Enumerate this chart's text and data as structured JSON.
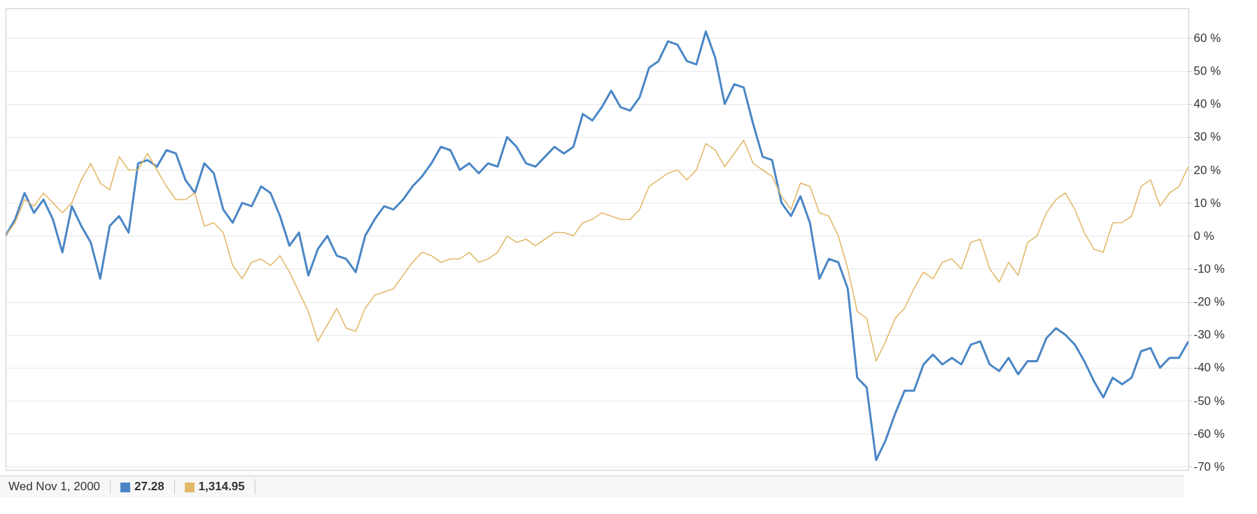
{
  "chart_data": {
    "type": "line",
    "categories": [
      null,
      null,
      null,
      null,
      null,
      null,
      null,
      null,
      null,
      null,
      null,
      null,
      null,
      null,
      null,
      null,
      null,
      null,
      null,
      null,
      null,
      null,
      null,
      null,
      null,
      null,
      null,
      null,
      null,
      null,
      null,
      null,
      null,
      null,
      null,
      null,
      null,
      null,
      null,
      null,
      null,
      null,
      null,
      null,
      null,
      null,
      null,
      null,
      null,
      null,
      null,
      null,
      null,
      null,
      null,
      null,
      null,
      null,
      null,
      null,
      null,
      null,
      null,
      null,
      null,
      null,
      null,
      null,
      null,
      null,
      null,
      null,
      null,
      null,
      null,
      null,
      null,
      null,
      null,
      null,
      null,
      null,
      null,
      null,
      null,
      null,
      null,
      null,
      null,
      null,
      null,
      null,
      null,
      null,
      null,
      null,
      null,
      null,
      null,
      null,
      null,
      null,
      null,
      null,
      null,
      null,
      null,
      null,
      null,
      null,
      null,
      null,
      null,
      null,
      null,
      null,
      null,
      null,
      null,
      null,
      null,
      null,
      null,
      null,
      null,
      null
    ],
    "series": [
      {
        "color": "#4a86c5",
        "values": [
          0,
          5,
          13,
          7,
          11,
          5,
          -5,
          9,
          3,
          -2,
          -13,
          3,
          6,
          1,
          22,
          23,
          21,
          26,
          25,
          17,
          13,
          22,
          19,
          8,
          4,
          10,
          9,
          15,
          13,
          6,
          -3,
          1,
          -12,
          -4,
          0,
          -6,
          -7,
          -11,
          0,
          5,
          9,
          8,
          11,
          15,
          18,
          22,
          27,
          26,
          20,
          22,
          19,
          22,
          21,
          30,
          27,
          22,
          21,
          24,
          27,
          25,
          27,
          37,
          35,
          39,
          44,
          39,
          38,
          42,
          51,
          53,
          59,
          58,
          53,
          52,
          62,
          54,
          40,
          46,
          45,
          34,
          24,
          23,
          10,
          6,
          12,
          4,
          -13,
          -7,
          -8,
          -16,
          -43,
          -46,
          -68,
          -62,
          -54,
          -47,
          -47,
          -39,
          -36,
          -39,
          -37,
          -39,
          -33,
          -32,
          -39,
          -41,
          -37,
          -42,
          -38,
          -38,
          -31,
          -28,
          -30,
          -33,
          -38,
          -44,
          -49,
          -43,
          -45,
          -43,
          -35,
          -34,
          -40,
          -37,
          -37,
          -32
        ]
      },
      {
        "color": "#e2b96a",
        "values": [
          0,
          4,
          11,
          9,
          13,
          10,
          7,
          10,
          17,
          22,
          16,
          14,
          24,
          20,
          20,
          25,
          20,
          15,
          11,
          11,
          13,
          3,
          4,
          1,
          -9,
          -13,
          -8,
          -7,
          -9,
          -6,
          -11,
          -17,
          -23,
          -32,
          -27,
          -22,
          -28,
          -29,
          -22,
          -18,
          -17,
          -16,
          -12,
          -8,
          -5,
          -6,
          -8,
          -7,
          -7,
          -5,
          -8,
          -7,
          -5,
          0,
          -2,
          -1,
          -3,
          -1,
          1,
          1,
          0,
          4,
          5,
          7,
          6,
          5,
          5,
          8,
          15,
          17,
          19,
          20,
          17,
          20,
          28,
          26,
          21,
          25,
          29,
          22,
          20,
          18,
          12,
          8,
          16,
          15,
          7,
          6,
          0,
          -10,
          -23,
          -25,
          -38,
          -32,
          -25,
          -22,
          -16,
          -11,
          -13,
          -8,
          -7,
          -10,
          -2,
          -1,
          -10,
          -14,
          -8,
          -12,
          -2,
          0,
          7,
          11,
          13,
          8,
          1,
          -4,
          -5,
          4,
          4,
          6,
          15,
          17,
          9,
          13,
          15,
          21
        ]
      }
    ],
    "ylim": [
      -71,
      69
    ],
    "yticks": [
      {
        "value": 60,
        "label": "60 %"
      },
      {
        "value": 50,
        "label": "50 %"
      },
      {
        "value": 40,
        "label": "40 %"
      },
      {
        "value": 30,
        "label": "30 %"
      },
      {
        "value": 20,
        "label": "20 %"
      },
      {
        "value": 10,
        "label": "10 %"
      },
      {
        "value": 0,
        "label": "0 %"
      },
      {
        "value": -10,
        "label": "-10 %"
      },
      {
        "value": -20,
        "label": "-20 %"
      },
      {
        "value": -30,
        "label": "-30 %"
      },
      {
        "value": -40,
        "label": "-40 %"
      },
      {
        "value": -50,
        "label": "-50 %"
      },
      {
        "value": -60,
        "label": "-60 %"
      },
      {
        "value": -70,
        "label": "-70 %"
      }
    ],
    "grid": "y",
    "line_style": "solid",
    "annotations": [
      "Wed Nov 1, 2000",
      "27.28",
      "1,314.95"
    ]
  }
}
